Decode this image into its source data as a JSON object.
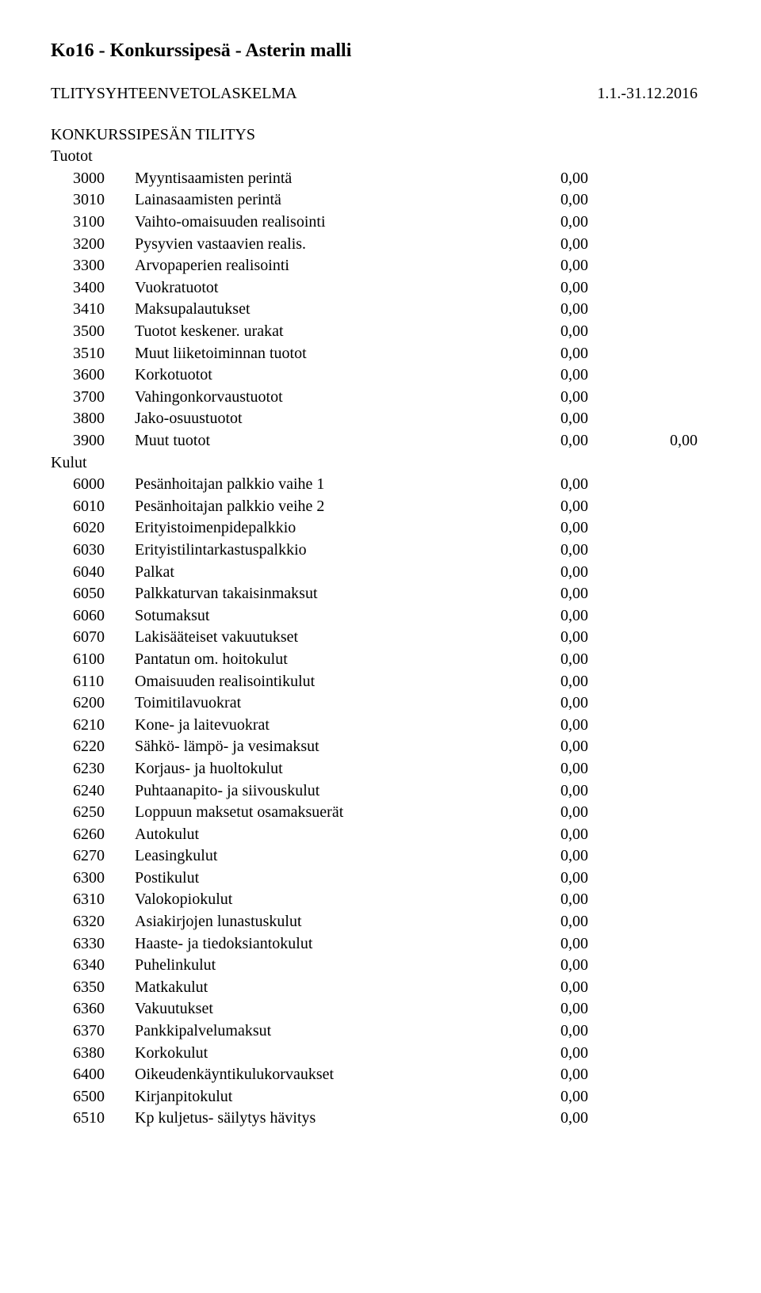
{
  "doc_title": "Ko16 - Konkurssipesä - Asterin malli",
  "report_label": "TLITYSYHTEENVETOLASKELMA",
  "date_range": "1.1.-31.12.2016",
  "section_title": "KONKURSSIPESÄN TILITYS",
  "groups": [
    {
      "label": "Tuotot",
      "items": [
        {
          "code": "3000",
          "desc": "Myyntisaamisten perintä",
          "val": "0,00"
        },
        {
          "code": "3010",
          "desc": "Lainasaamisten perintä",
          "val": "0,00"
        },
        {
          "code": "3100",
          "desc": "Vaihto-omaisuuden realisointi",
          "val": "0,00"
        },
        {
          "code": "3200",
          "desc": "Pysyvien vastaavien realis.",
          "val": "0,00"
        },
        {
          "code": "3300",
          "desc": "Arvopaperien realisointi",
          "val": "0,00"
        },
        {
          "code": "3400",
          "desc": "Vuokratuotot",
          "val": "0,00"
        },
        {
          "code": "3410",
          "desc": "Maksupalautukset",
          "val": "0,00"
        },
        {
          "code": "3500",
          "desc": "Tuotot keskener. urakat",
          "val": "0,00"
        },
        {
          "code": "3510",
          "desc": "Muut liiketoiminnan tuotot",
          "val": "0,00"
        },
        {
          "code": "3600",
          "desc": "Korkotuotot",
          "val": "0,00"
        },
        {
          "code": "3700",
          "desc": "Vahingonkorvaustuotot",
          "val": "0,00"
        },
        {
          "code": "3800",
          "desc": "Jako-osuustuotot",
          "val": "0,00"
        },
        {
          "code": "3900",
          "desc": "Muut tuotot",
          "val": "0,00",
          "val2": "0,00"
        }
      ]
    },
    {
      "label": "Kulut",
      "items": [
        {
          "code": "6000",
          "desc": "Pesänhoitajan palkkio vaihe 1",
          "val": "0,00"
        },
        {
          "code": "6010",
          "desc": "Pesänhoitajan palkkio veihe 2",
          "val": "0,00"
        },
        {
          "code": "6020",
          "desc": "Erityistoimenpidepalkkio",
          "val": "0,00"
        },
        {
          "code": "6030",
          "desc": "Erityistilintarkastuspalkkio",
          "val": "0,00"
        },
        {
          "code": "6040",
          "desc": "Palkat",
          "val": "0,00"
        },
        {
          "code": "6050",
          "desc": "Palkkaturvan takaisinmaksut",
          "val": "0,00"
        },
        {
          "code": "6060",
          "desc": "Sotumaksut",
          "val": "0,00"
        },
        {
          "code": "6070",
          "desc": "Lakisääteiset vakuutukset",
          "val": "0,00"
        },
        {
          "code": "6100",
          "desc": "Pantatun om. hoitokulut",
          "val": "0,00"
        },
        {
          "code": "6110",
          "desc": "Omaisuuden realisointikulut",
          "val": "0,00"
        },
        {
          "code": "6200",
          "desc": "Toimitilavuokrat",
          "val": "0,00"
        },
        {
          "code": "6210",
          "desc": "Kone- ja laitevuokrat",
          "val": "0,00"
        },
        {
          "code": "6220",
          "desc": "Sähkö- lämpö- ja vesimaksut",
          "val": "0,00"
        },
        {
          "code": "6230",
          "desc": "Korjaus- ja huoltokulut",
          "val": "0,00"
        },
        {
          "code": "6240",
          "desc": "Puhtaanapito- ja siivouskulut",
          "val": "0,00"
        },
        {
          "code": "6250",
          "desc": "Loppuun maksetut osamaksuerät",
          "val": "0,00"
        },
        {
          "code": "6260",
          "desc": "Autokulut",
          "val": "0,00"
        },
        {
          "code": "6270",
          "desc": "Leasingkulut",
          "val": "0,00"
        },
        {
          "code": "6300",
          "desc": "Postikulut",
          "val": "0,00"
        },
        {
          "code": "6310",
          "desc": "Valokopiokulut",
          "val": "0,00"
        },
        {
          "code": "6320",
          "desc": "Asiakirjojen lunastuskulut",
          "val": "0,00"
        },
        {
          "code": "6330",
          "desc": "Haaste- ja tiedoksiantokulut",
          "val": "0,00"
        },
        {
          "code": "6340",
          "desc": "Puhelinkulut",
          "val": "0,00"
        },
        {
          "code": "6350",
          "desc": "Matkakulut",
          "val": "0,00"
        },
        {
          "code": "6360",
          "desc": "Vakuutukset",
          "val": "0,00"
        },
        {
          "code": "6370",
          "desc": "Pankkipalvelumaksut",
          "val": "0,00"
        },
        {
          "code": "6380",
          "desc": "Korkokulut",
          "val": "0,00"
        },
        {
          "code": "6400",
          "desc": "Oikeudenkäyntikulukorvaukset",
          "val": "0,00"
        },
        {
          "code": "6500",
          "desc": "Kirjanpitokulut",
          "val": "0,00"
        },
        {
          "code": "6510",
          "desc": "Kp kuljetus- säilytys hävitys",
          "val": "0,00"
        }
      ]
    }
  ]
}
